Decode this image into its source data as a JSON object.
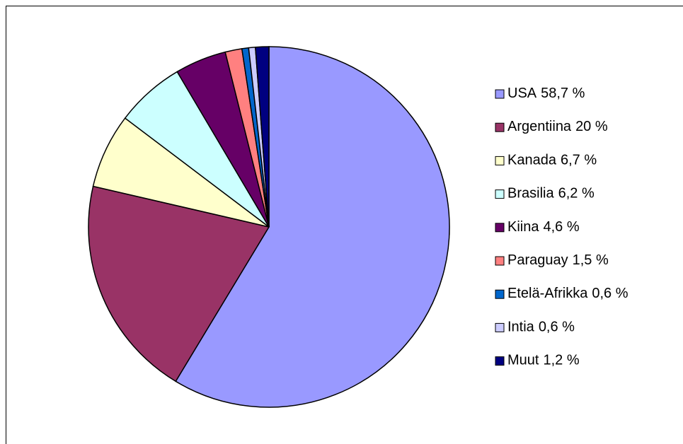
{
  "chart_data": {
    "type": "pie",
    "categories": [
      "USA",
      "Argentiina",
      "Kanada",
      "Brasilia",
      "Kiina",
      "Paraguay",
      "Etelä-Afrikka",
      "Intia",
      "Muut"
    ],
    "values": [
      58.7,
      20,
      6.7,
      6.2,
      4.6,
      1.5,
      0.6,
      0.6,
      1.2
    ],
    "value_labels": [
      "58,7 %",
      "20 %",
      "6,7 %",
      "6,2 %",
      "4,6 %",
      "1,5 %",
      "0,6 %",
      "0,6 %",
      "1,2 %"
    ],
    "colors": [
      "#9999ff",
      "#993366",
      "#ffffcc",
      "#ccffff",
      "#660066",
      "#ff8080",
      "#0066cc",
      "#ccccff",
      "#000080"
    ],
    "legend": "right"
  }
}
